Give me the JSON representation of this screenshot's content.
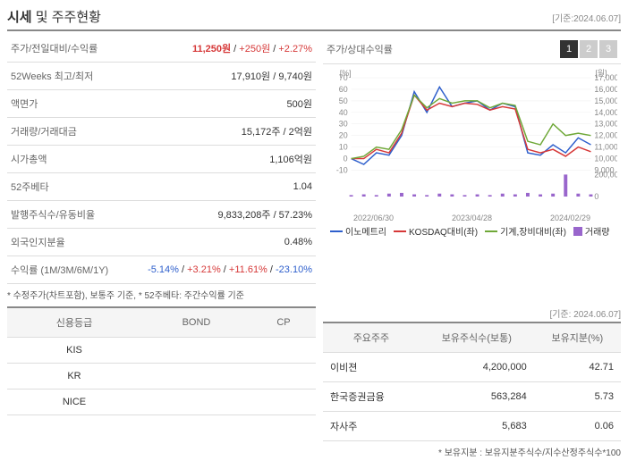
{
  "header": {
    "title_part1": "시세",
    "title_part2": " 및 주주현황",
    "date_label": "[기준:2024.06.07]"
  },
  "price_table": {
    "rows": [
      {
        "label": "주가/전일대비/수익률",
        "value_parts": [
          {
            "text": "11,250원",
            "class": "red price-main"
          },
          {
            "text": " / ",
            "class": ""
          },
          {
            "text": "+250원",
            "class": "red"
          },
          {
            "text": " / ",
            "class": ""
          },
          {
            "text": "+2.27%",
            "class": "red"
          }
        ]
      },
      {
        "label": "52Weeks 최고/최저",
        "value": "17,910원 / 9,740원"
      },
      {
        "label": "액면가",
        "value": "500원"
      },
      {
        "label": "거래량/거래대금",
        "value": "15,172주 / 2억원"
      },
      {
        "label": "시가총액",
        "value": "1,106억원"
      },
      {
        "label": "52주베타",
        "value": "1.04"
      },
      {
        "label": "발행주식수/유동비율",
        "value": "9,833,208주 / 57.23%"
      },
      {
        "label": "외국인지분율",
        "value": "0.48%"
      },
      {
        "label": "수익률 (1M/3M/6M/1Y)",
        "value_parts": [
          {
            "text": "-5.14%",
            "class": "blue"
          },
          {
            "text": " / ",
            "class": ""
          },
          {
            "text": "+3.21%",
            "class": "red"
          },
          {
            "text": " / ",
            "class": ""
          },
          {
            "text": "+11.61%",
            "class": "red"
          },
          {
            "text": " / ",
            "class": ""
          },
          {
            "text": "-23.10%",
            "class": "blue"
          }
        ]
      }
    ],
    "footnote": "* 수정주가(차트포함), 보통주 기준, * 52주베타: 주간수익률 기준"
  },
  "chart": {
    "title": "주가/상대수익률",
    "tabs": [
      "1",
      "2",
      "3"
    ],
    "active_tab": 0,
    "left_axis": {
      "label": "[%]",
      "min": -10,
      "max": 70,
      "ticks": [
        -10,
        0,
        10,
        20,
        30,
        40,
        50,
        60,
        70
      ]
    },
    "right_axis": {
      "label": "[원]",
      "min": 9000,
      "max": 17000,
      "ticks": [
        9000,
        10000,
        11000,
        12000,
        13000,
        14000,
        15000,
        16000,
        17000
      ]
    },
    "volume_axis": {
      "max": 200000,
      "ticks": [
        0,
        200000
      ]
    },
    "x_labels": [
      "2022/06/30",
      "2023/04/28",
      "2024/02/29"
    ],
    "series": [
      {
        "name": "이노메트리",
        "color": "#2e5fcc",
        "data": [
          0,
          -5,
          5,
          3,
          20,
          58,
          40,
          62,
          45,
          48,
          50,
          42,
          48,
          45,
          5,
          3,
          12,
          5,
          18,
          12
        ]
      },
      {
        "name": "KOSDAQ대비(좌)",
        "color": "#d63838",
        "data": [
          0,
          0,
          8,
          5,
          22,
          55,
          42,
          48,
          45,
          48,
          47,
          42,
          45,
          43,
          8,
          5,
          8,
          2,
          10,
          6
        ]
      },
      {
        "name": "기계,장비대비(좌)",
        "color": "#6fa838",
        "data": [
          0,
          2,
          10,
          8,
          25,
          55,
          44,
          52,
          48,
          50,
          50,
          44,
          48,
          46,
          15,
          12,
          30,
          20,
          22,
          20
        ]
      }
    ],
    "volume": {
      "name": "거래량",
      "color": "#9966cc",
      "data": [
        2,
        3,
        2,
        4,
        5,
        3,
        2,
        4,
        3,
        2,
        3,
        2,
        4,
        3,
        5,
        3,
        4,
        30,
        4,
        3
      ]
    }
  },
  "rating_table": {
    "headers": [
      "신용등급",
      "BOND",
      "CP"
    ],
    "rows": [
      {
        "name": "KIS",
        "bond": "",
        "cp": ""
      },
      {
        "name": "KR",
        "bond": "",
        "cp": ""
      },
      {
        "name": "NICE",
        "bond": "",
        "cp": ""
      }
    ]
  },
  "holder_section": {
    "date_label": "[기준: 2024.06.07]",
    "headers": [
      "주요주주",
      "보유주식수(보통)",
      "보유지분(%)"
    ],
    "rows": [
      {
        "name": "이비젼",
        "shares": "4,200,000",
        "pct": "42.71"
      },
      {
        "name": "한국증권금융",
        "shares": "563,284",
        "pct": "5.73"
      },
      {
        "name": "자사주",
        "shares": "5,683",
        "pct": "0.06"
      }
    ],
    "footnote": "* 보유지분 : 보유지분주식수/지수산정주식수*100"
  }
}
